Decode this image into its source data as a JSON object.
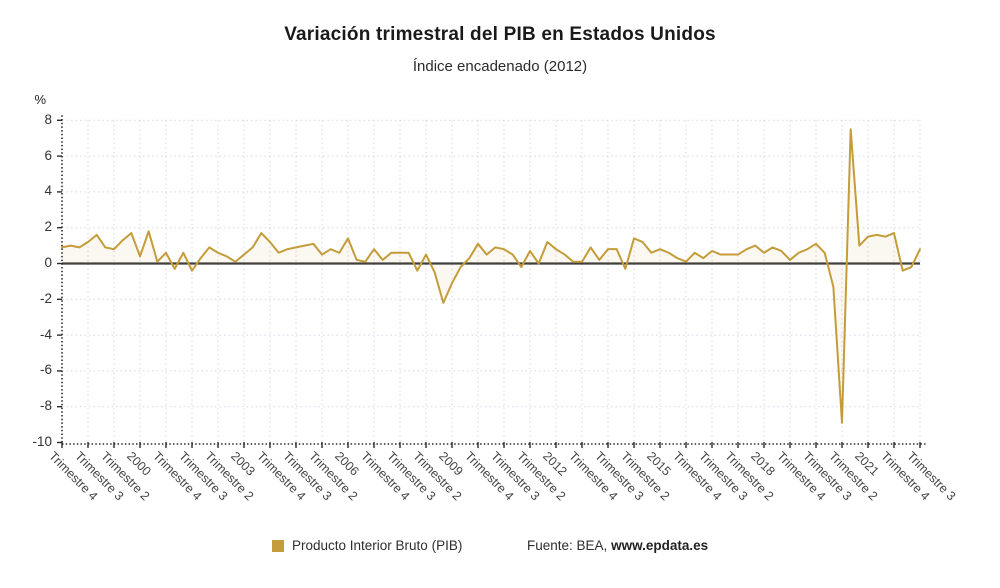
{
  "header": {
    "title": "Variación trimestral del PIB en Estados Unidos",
    "subtitle": "Índice encadenado (2012)"
  },
  "legend": {
    "series_label": "Producto Interior Bruto (PIB)",
    "source_prefix": "Fuente: BEA,",
    "source_link": "www.epdata.es"
  },
  "colors": {
    "line": "#C49C3A",
    "fill": "#C49C3A",
    "fill_opacity": 0.07,
    "grid": "#D8D4E3",
    "axis": "#2B2B2B",
    "zero_line": "#3D3D3D",
    "title_text": "#1A1A1A",
    "axis_text": "#444444"
  },
  "chart_data": {
    "type": "line",
    "title": "Variación trimestral del PIB en Estados Unidos",
    "subtitle": "Índice encadenado (2012)",
    "xlabel": "",
    "ylabel": "%",
    "ylim": [
      -10,
      8
    ],
    "yticks": [
      "8",
      "6",
      "4",
      "2",
      "0",
      "-2",
      "-4",
      "-6",
      "-8",
      "-10"
    ],
    "grid": true,
    "zero_line": true,
    "legend_position": "bottom",
    "x_start_period": "Trimestre 4 1997",
    "x_end_period": "Trimestre 3 2022",
    "x_ticks_every_n_points": 3,
    "x_tick_labels": [
      "Trimestre 4",
      "Trimestre 3",
      "Trimestre 2",
      "2000",
      "Trimestre 4",
      "Trimestre 3",
      "Trimestre 2",
      "2003",
      "Trimestre 4",
      "Trimestre 3",
      "Trimestre 2",
      "2006",
      "Trimestre 4",
      "Trimestre 3",
      "Trimestre 2",
      "2009",
      "Trimestre 4",
      "Trimestre 3",
      "Trimestre 2",
      "2012",
      "Trimestre 4",
      "Trimestre 3",
      "Trimestre 2",
      "2015",
      "Trimestre 4",
      "Trimestre 3",
      "Trimestre 2",
      "2018",
      "Trimestre 4",
      "Trimestre 3",
      "Trimestre 2",
      "2021",
      "Trimestre 4",
      "Trimestre 3"
    ],
    "series": [
      {
        "name": "Producto Interior Bruto (PIB)",
        "color": "#C49C3A",
        "values": [
          0.9,
          1.0,
          0.9,
          1.2,
          1.6,
          0.9,
          0.8,
          1.3,
          1.7,
          0.4,
          1.8,
          0.1,
          0.6,
          -0.3,
          0.6,
          -0.4,
          0.3,
          0.9,
          0.6,
          0.4,
          0.1,
          0.5,
          0.9,
          1.7,
          1.2,
          0.6,
          0.8,
          0.9,
          1.0,
          1.1,
          0.5,
          0.8,
          0.6,
          1.4,
          0.2,
          0.1,
          0.8,
          0.2,
          0.6,
          0.6,
          0.6,
          -0.4,
          0.5,
          -0.5,
          -2.2,
          -1.1,
          -0.2,
          0.3,
          1.1,
          0.5,
          0.9,
          0.8,
          0.5,
          -0.2,
          0.7,
          0.0,
          1.2,
          0.8,
          0.5,
          0.1,
          0.1,
          0.9,
          0.2,
          0.8,
          0.8,
          -0.3,
          1.4,
          1.2,
          0.6,
          0.8,
          0.6,
          0.3,
          0.1,
          0.6,
          0.3,
          0.7,
          0.5,
          0.5,
          0.5,
          0.8,
          1.0,
          0.6,
          0.9,
          0.7,
          0.2,
          0.6,
          0.8,
          1.1,
          0.6,
          -1.3,
          -8.9,
          7.5,
          1.0,
          1.5,
          1.6,
          1.5,
          1.7,
          -0.4,
          -0.2,
          0.8
        ]
      }
    ]
  }
}
